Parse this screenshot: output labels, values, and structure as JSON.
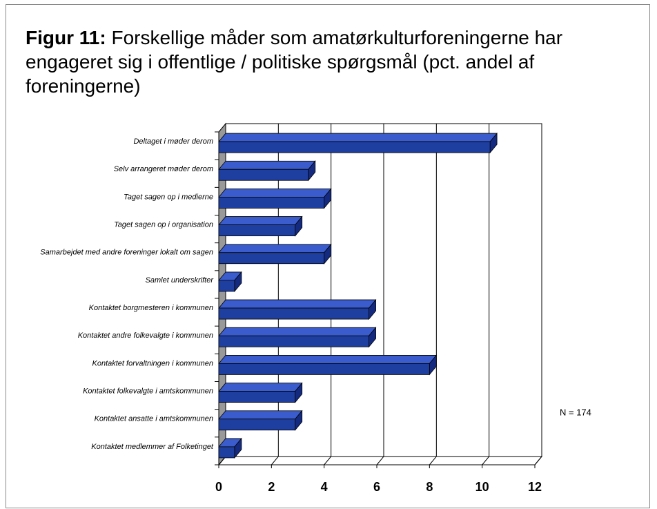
{
  "chart_data": {
    "type": "hbar3d",
    "title_label": "Figur 11:",
    "title": "Forskellige måder som amatørkulturforeningerne har engageret sig i offentlige / politiske spørgsmål (pct. andel af foreningerne)",
    "annotation": "N = 174",
    "categories": [
      "Deltaget i møder derom",
      "Selv arrangeret møder derom",
      "Taget sagen op i medierne",
      "Taget sagen op i organisation",
      "Samarbejdet med andre foreninger lokalt om sagen",
      "Samlet underskrifter",
      "Kontaktet borgmesteren i kommunen",
      "Kontaktet andre folkevalgte i kommunen",
      "Kontaktet forvaltningen i kommunen",
      "Kontaktet folkevalgte i amtskommunen",
      "Kontaktet ansatte i amtskommunen",
      "Kontaktet medlemmer af Folketinget"
    ],
    "values": [
      10.3,
      3.4,
      4.0,
      2.9,
      4.0,
      0.6,
      5.7,
      5.7,
      8.0,
      2.9,
      2.9,
      0.6
    ],
    "color": "#1f3fa0",
    "xlim": [
      0,
      12
    ],
    "xticks": [
      0,
      2,
      4,
      6,
      8,
      10,
      12
    ],
    "grid": true
  }
}
